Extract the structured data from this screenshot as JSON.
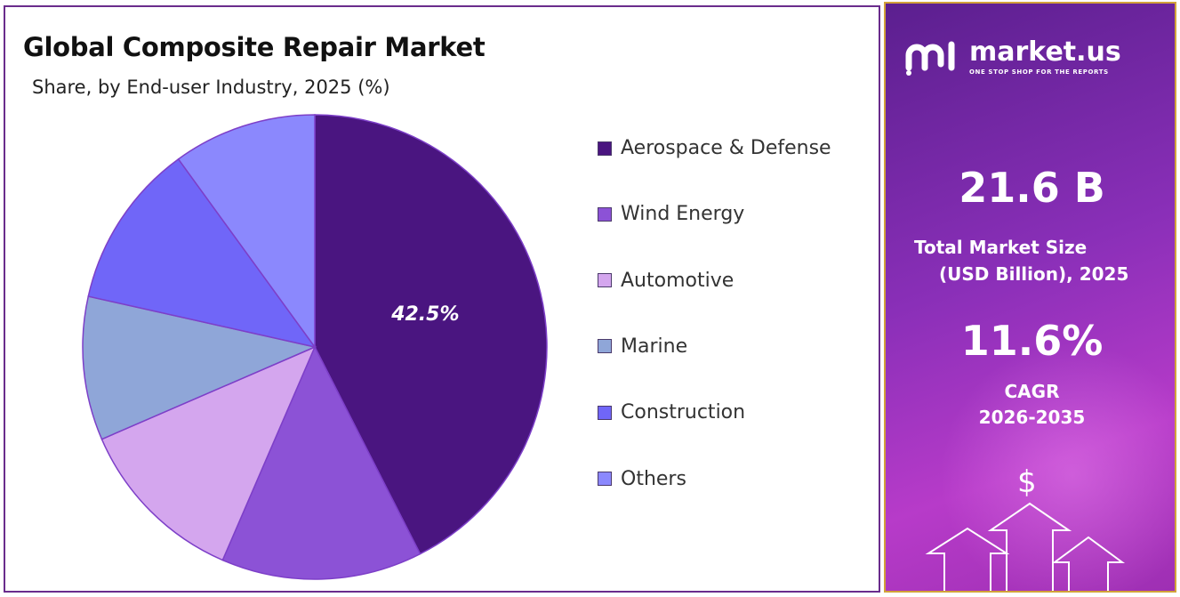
{
  "chart_data": {
    "type": "pie",
    "title": "Global Composite Repair Market",
    "subtitle": "Share, by End-user Industry, 2025 (%)",
    "categories": [
      "Aerospace & Defense",
      "Wind Energy",
      "Automotive",
      "Marine",
      "Construction",
      "Others"
    ],
    "values": [
      42.5,
      14.0,
      12.0,
      10.0,
      11.5,
      10.0
    ],
    "colors": [
      "#4a1580",
      "#8c52d6",
      "#d4a6ee",
      "#8fa6d8",
      "#7066f8",
      "#8b88fd"
    ],
    "data_labels": [
      "42.5%",
      "",
      "",
      "",
      "",
      ""
    ],
    "legend_position": "right",
    "start_angle": "12 o'clock",
    "direction": "clockwise"
  },
  "sidebar": {
    "brand_name": "market.us",
    "brand_tagline": "ONE STOP SHOP FOR THE REPORTS",
    "market_size_value": "21.6 B",
    "market_size_label_line1": "Total Market Size",
    "market_size_label_line2": "(USD Billion), 2025",
    "cagr_value": "11.6%",
    "cagr_label_line1": "CAGR",
    "cagr_label_line2": "2026-2035",
    "dollar_symbol": "$"
  }
}
